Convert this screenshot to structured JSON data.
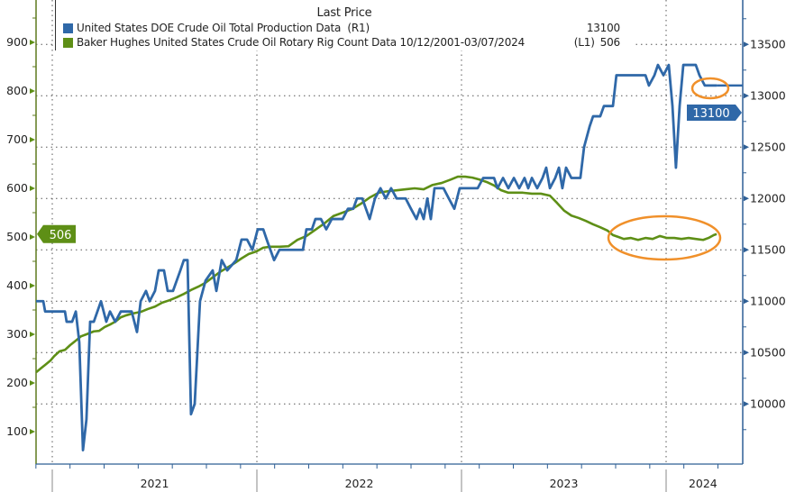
{
  "chart_data": {
    "type": "line",
    "legend_title": "Last Price",
    "legend_placement": "top",
    "series": [
      {
        "name": "United States DOE Crude Oil Total Production Data",
        "axis": "R1",
        "axis_label": "(R1)",
        "last_value": "13100",
        "color": "#2f68a8",
        "points": [
          [
            2020.921,
            11000
          ],
          [
            2020.956,
            11000
          ],
          [
            2020.965,
            10900
          ],
          [
            2021.062,
            10900
          ],
          [
            2021.07,
            10800
          ],
          [
            2021.097,
            10800
          ],
          [
            2021.115,
            10900
          ],
          [
            2021.132,
            10600
          ],
          [
            2021.15,
            9550
          ],
          [
            2021.167,
            9850
          ],
          [
            2021.185,
            10800
          ],
          [
            2021.203,
            10800
          ],
          [
            2021.238,
            11000
          ],
          [
            2021.264,
            10800
          ],
          [
            2021.282,
            10900
          ],
          [
            2021.308,
            10800
          ],
          [
            2021.335,
            10900
          ],
          [
            2021.388,
            10900
          ],
          [
            2021.414,
            10700
          ],
          [
            2021.432,
            11000
          ],
          [
            2021.458,
            11100
          ],
          [
            2021.476,
            11000
          ],
          [
            2021.502,
            11100
          ],
          [
            2021.52,
            11300
          ],
          [
            2021.546,
            11300
          ],
          [
            2021.564,
            11100
          ],
          [
            2021.59,
            11100
          ],
          [
            2021.626,
            11300
          ],
          [
            2021.643,
            11400
          ],
          [
            2021.661,
            11400
          ],
          [
            2021.678,
            9900
          ],
          [
            2021.696,
            10000
          ],
          [
            2021.722,
            11000
          ],
          [
            2021.749,
            11200
          ],
          [
            2021.784,
            11300
          ],
          [
            2021.802,
            11100
          ],
          [
            2021.828,
            11400
          ],
          [
            2021.855,
            11300
          ],
          [
            2021.899,
            11400
          ],
          [
            2021.925,
            11600
          ],
          [
            2021.952,
            11600
          ],
          [
            2021.978,
            11500
          ],
          [
            2022.004,
            11700
          ],
          [
            2022.031,
            11700
          ],
          [
            2022.048,
            11600
          ],
          [
            2022.066,
            11500
          ],
          [
            2022.084,
            11400
          ],
          [
            2022.11,
            11500
          ],
          [
            2022.225,
            11500
          ],
          [
            2022.242,
            11700
          ],
          [
            2022.269,
            11700
          ],
          [
            2022.286,
            11800
          ],
          [
            2022.313,
            11800
          ],
          [
            2022.339,
            11700
          ],
          [
            2022.366,
            11800
          ],
          [
            2022.419,
            11800
          ],
          [
            2022.445,
            11900
          ],
          [
            2022.471,
            11900
          ],
          [
            2022.489,
            12000
          ],
          [
            2022.515,
            12000
          ],
          [
            2022.551,
            11800
          ],
          [
            2022.577,
            12000
          ],
          [
            2022.604,
            12100
          ],
          [
            2022.63,
            12000
          ],
          [
            2022.656,
            12100
          ],
          [
            2022.683,
            12000
          ],
          [
            2022.727,
            12000
          ],
          [
            2022.753,
            11900
          ],
          [
            2022.78,
            11800
          ],
          [
            2022.797,
            11900
          ],
          [
            2022.815,
            11800
          ],
          [
            2022.833,
            12000
          ],
          [
            2022.85,
            11800
          ],
          [
            2022.868,
            12100
          ],
          [
            2022.912,
            12100
          ],
          [
            2022.938,
            12000
          ],
          [
            2022.965,
            11900
          ],
          [
            2022.991,
            12100
          ],
          [
            2023.079,
            12100
          ],
          [
            2023.106,
            12200
          ],
          [
            2023.159,
            12200
          ],
          [
            2023.176,
            12100
          ],
          [
            2023.203,
            12200
          ],
          [
            2023.229,
            12100
          ],
          [
            2023.256,
            12200
          ],
          [
            2023.282,
            12100
          ],
          [
            2023.308,
            12200
          ],
          [
            2023.326,
            12100
          ],
          [
            2023.344,
            12200
          ],
          [
            2023.37,
            12100
          ],
          [
            2023.396,
            12200
          ],
          [
            2023.414,
            12300
          ],
          [
            2023.432,
            12100
          ],
          [
            2023.458,
            12200
          ],
          [
            2023.476,
            12300
          ],
          [
            2023.493,
            12100
          ],
          [
            2023.511,
            12300
          ],
          [
            2023.537,
            12200
          ],
          [
            2023.581,
            12200
          ],
          [
            2023.599,
            12500
          ],
          [
            2023.626,
            12700
          ],
          [
            2023.643,
            12800
          ],
          [
            2023.678,
            12800
          ],
          [
            2023.696,
            12900
          ],
          [
            2023.74,
            12900
          ],
          [
            2023.757,
            13200
          ],
          [
            2023.899,
            13200
          ],
          [
            2023.916,
            13100
          ],
          [
            2023.943,
            13200
          ],
          [
            2023.96,
            13300
          ],
          [
            2023.987,
            13200
          ],
          [
            2024.013,
            13300
          ],
          [
            2024.031,
            12900
          ],
          [
            2024.048,
            12300
          ],
          [
            2024.066,
            12900
          ],
          [
            2024.084,
            13300
          ],
          [
            2024.145,
            13300
          ],
          [
            2024.163,
            13200
          ],
          [
            2024.189,
            13100
          ],
          [
            2024.247,
            13100
          ]
        ]
      },
      {
        "name": "Baker Hughes United States Crude Oil Rotary Rig Count Data 10/12/2001-03/07/2024",
        "axis": "L1",
        "axis_label": "(L1)",
        "last_value": "506",
        "color": "#5e8f16",
        "points": [
          [
            2020.921,
            222
          ],
          [
            2020.947,
            231
          ],
          [
            2020.965,
            237
          ],
          [
            2020.991,
            246
          ],
          [
            2021.009,
            255
          ],
          [
            2021.035,
            265
          ],
          [
            2021.062,
            268
          ],
          [
            2021.088,
            278
          ],
          [
            2021.115,
            287
          ],
          [
            2021.141,
            296
          ],
          [
            2021.167,
            300
          ],
          [
            2021.203,
            306
          ],
          [
            2021.229,
            307
          ],
          [
            2021.256,
            315
          ],
          [
            2021.282,
            320
          ],
          [
            2021.308,
            326
          ],
          [
            2021.335,
            335
          ],
          [
            2021.361,
            339
          ],
          [
            2021.396,
            343
          ],
          [
            2021.432,
            346
          ],
          [
            2021.467,
            352
          ],
          [
            2021.502,
            357
          ],
          [
            2021.537,
            365
          ],
          [
            2021.573,
            370
          ],
          [
            2021.608,
            376
          ],
          [
            2021.643,
            383
          ],
          [
            2021.678,
            391
          ],
          [
            2021.714,
            398
          ],
          [
            2021.749,
            406
          ],
          [
            2021.784,
            417
          ],
          [
            2021.819,
            428
          ],
          [
            2021.855,
            437
          ],
          [
            2021.89,
            446
          ],
          [
            2021.925,
            456
          ],
          [
            2021.96,
            465
          ],
          [
            2021.996,
            470
          ],
          [
            2022.031,
            478
          ],
          [
            2022.066,
            480
          ],
          [
            2022.11,
            480
          ],
          [
            2022.154,
            481
          ],
          [
            2022.198,
            494
          ],
          [
            2022.242,
            502
          ],
          [
            2022.286,
            515
          ],
          [
            2022.33,
            528
          ],
          [
            2022.374,
            543
          ],
          [
            2022.419,
            550
          ],
          [
            2022.463,
            557
          ],
          [
            2022.507,
            568
          ],
          [
            2022.551,
            581
          ],
          [
            2022.595,
            591
          ],
          [
            2022.639,
            594
          ],
          [
            2022.683,
            596
          ],
          [
            2022.727,
            598
          ],
          [
            2022.771,
            600
          ],
          [
            2022.815,
            598
          ],
          [
            2022.859,
            607
          ],
          [
            2022.903,
            611
          ],
          [
            2022.947,
            618
          ],
          [
            2022.982,
            624
          ],
          [
            2023.018,
            624
          ],
          [
            2023.053,
            622
          ],
          [
            2023.088,
            618
          ],
          [
            2023.123,
            613
          ],
          [
            2023.159,
            606
          ],
          [
            2023.194,
            596
          ],
          [
            2023.229,
            591
          ],
          [
            2023.264,
            591
          ],
          [
            2023.3,
            591
          ],
          [
            2023.344,
            589
          ],
          [
            2023.388,
            589
          ],
          [
            2023.432,
            585
          ],
          [
            2023.467,
            570
          ],
          [
            2023.502,
            554
          ],
          [
            2023.537,
            544
          ],
          [
            2023.573,
            539
          ],
          [
            2023.608,
            533
          ],
          [
            2023.643,
            526
          ],
          [
            2023.678,
            520
          ],
          [
            2023.714,
            513
          ],
          [
            2023.74,
            504
          ],
          [
            2023.767,
            500
          ],
          [
            2023.793,
            496
          ],
          [
            2023.828,
            498
          ],
          [
            2023.863,
            494
          ],
          [
            2023.899,
            498
          ],
          [
            2023.934,
            496
          ],
          [
            2023.969,
            502
          ],
          [
            2024.004,
            498
          ],
          [
            2024.04,
            498
          ],
          [
            2024.075,
            496
          ],
          [
            2024.11,
            498
          ],
          [
            2024.145,
            496
          ],
          [
            2024.181,
            494
          ],
          [
            2024.207,
            498
          ],
          [
            2024.233,
            504
          ],
          [
            2024.247,
            506
          ]
        ]
      }
    ],
    "left_axis": {
      "ticks": [
        100,
        200,
        300,
        400,
        500,
        600,
        700,
        800,
        900
      ],
      "range": [
        50,
        960
      ],
      "current_label": "506"
    },
    "right_axis": {
      "ticks": [
        10000,
        10500,
        11000,
        11500,
        12000,
        12500,
        13000,
        13500
      ],
      "range": [
        9720,
        13900
      ],
      "current_label": "13100"
    },
    "x_axis": {
      "labels": [
        "2021",
        "2022",
        "2023",
        "2024"
      ],
      "range": [
        2020.921,
        2024.35
      ]
    },
    "annotations": [
      {
        "type": "ellipse",
        "target": "production latest",
        "color": "#f0902a"
      },
      {
        "type": "ellipse",
        "target": "rig count since mid-2023",
        "color": "#f0902a"
      }
    ]
  }
}
